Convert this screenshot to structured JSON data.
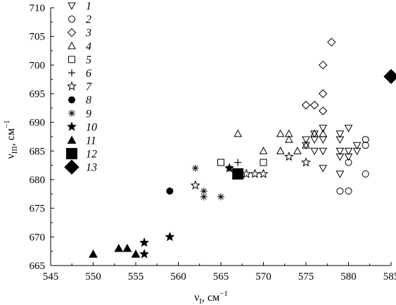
{
  "chart_data": {
    "type": "scatter",
    "xlabel": {
      "base": "ν",
      "sub": "I",
      "unit": ", см",
      "sup": "−1"
    },
    "ylabel": {
      "base": "ν",
      "sub": "III",
      "unit": ", см",
      "sup": "−1"
    },
    "xlim": [
      545,
      585
    ],
    "ylim": [
      665,
      710
    ],
    "xticks": [
      545,
      550,
      555,
      560,
      565,
      570,
      575,
      580,
      585
    ],
    "yticks": [
      665,
      670,
      675,
      680,
      685,
      690,
      695,
      700,
      705,
      710
    ],
    "grid": false,
    "legend_position": "top-left",
    "series": [
      {
        "name": "1",
        "marker": "triangle-down-open",
        "points": [
          [
            575,
            687
          ],
          [
            576,
            688
          ],
          [
            577,
            689
          ],
          [
            575,
            686
          ],
          [
            576,
            687
          ],
          [
            577,
            687
          ],
          [
            576,
            685
          ],
          [
            577,
            685
          ],
          [
            579,
            687
          ],
          [
            579,
            688
          ],
          [
            580,
            689
          ],
          [
            579,
            685
          ],
          [
            580,
            685
          ],
          [
            579,
            684
          ],
          [
            580,
            684
          ],
          [
            581,
            685
          ],
          [
            581,
            686
          ],
          [
            577,
            682
          ],
          [
            579,
            681
          ]
        ]
      },
      {
        "name": "2",
        "marker": "circle-open",
        "points": [
          [
            580,
            683
          ],
          [
            582,
            687
          ],
          [
            582,
            686
          ],
          [
            582,
            681
          ],
          [
            579,
            678
          ],
          [
            580,
            678
          ]
        ]
      },
      {
        "name": "3",
        "marker": "diamond-open",
        "points": [
          [
            578,
            704
          ],
          [
            577,
            700
          ],
          [
            577,
            695
          ],
          [
            575,
            693
          ],
          [
            576,
            693
          ],
          [
            577,
            692
          ]
        ]
      },
      {
        "name": "4",
        "marker": "triangle-up-open",
        "points": [
          [
            567,
            688
          ],
          [
            570,
            685
          ],
          [
            572,
            688
          ],
          [
            573,
            688
          ],
          [
            573,
            687
          ],
          [
            572,
            685
          ],
          [
            574,
            685
          ],
          [
            575,
            686
          ],
          [
            576,
            688
          ],
          [
            577,
            688
          ]
        ]
      },
      {
        "name": "5",
        "marker": "square-open",
        "points": [
          [
            565,
            683
          ],
          [
            570,
            683
          ]
        ]
      },
      {
        "name": "6",
        "marker": "plus",
        "points": [
          [
            567,
            683
          ]
        ]
      },
      {
        "name": "7",
        "marker": "star-open",
        "points": [
          [
            562,
            679
          ],
          [
            567,
            681
          ],
          [
            568,
            681
          ],
          [
            569,
            681
          ],
          [
            570,
            681
          ],
          [
            573,
            684
          ],
          [
            575,
            683
          ]
        ]
      },
      {
        "name": "8",
        "marker": "circle-filled",
        "points": [
          [
            559,
            678
          ]
        ]
      },
      {
        "name": "9",
        "marker": "asterisk",
        "points": [
          [
            562,
            682
          ],
          [
            563,
            678
          ],
          [
            563,
            677
          ],
          [
            565,
            677
          ],
          [
            566,
            682
          ]
        ]
      },
      {
        "name": "10",
        "marker": "star-filled",
        "points": [
          [
            556,
            669
          ],
          [
            556,
            667
          ],
          [
            559,
            670
          ],
          [
            566,
            682
          ]
        ]
      },
      {
        "name": "11",
        "marker": "triangle-up-filled",
        "points": [
          [
            550,
            667
          ],
          [
            553,
            668
          ],
          [
            554,
            668
          ],
          [
            555,
            667
          ]
        ]
      },
      {
        "name": "12",
        "marker": "square-filled-large",
        "points": [
          [
            567,
            681
          ]
        ]
      },
      {
        "name": "13",
        "marker": "diamond-filled-large",
        "points": [
          [
            585,
            698
          ]
        ]
      }
    ]
  }
}
